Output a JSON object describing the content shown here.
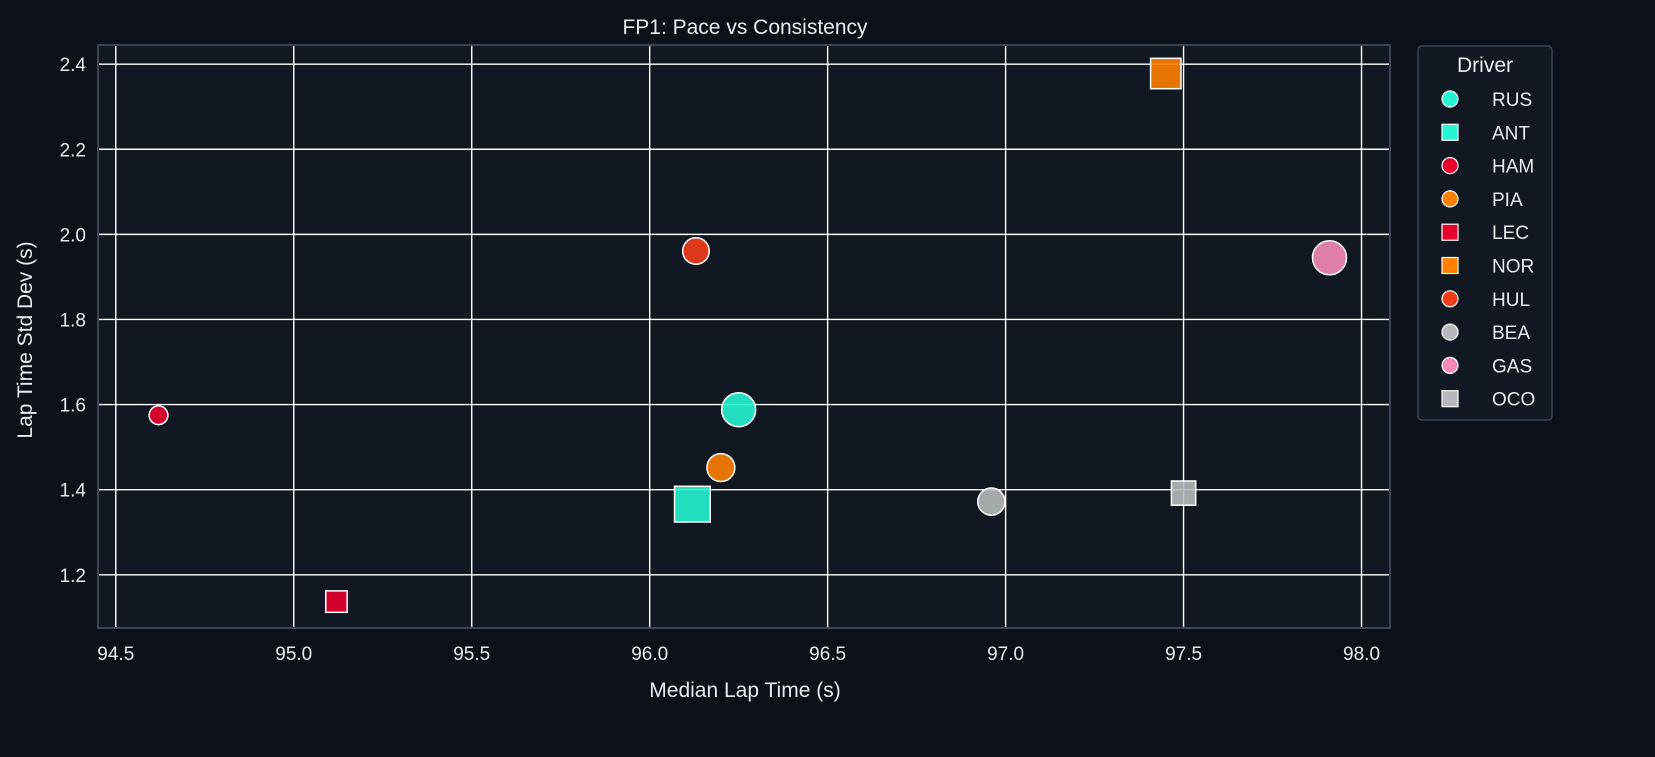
{
  "chart_data": {
    "type": "scatter",
    "title": "FP1: Pace vs Consistency",
    "xlabel": "Median Lap Time (s)",
    "ylabel": "Lap Time Std Dev (s)",
    "xlim": [
      94.45,
      98.08
    ],
    "ylim": [
      1.075,
      2.445
    ],
    "xticks": [
      94.5,
      95.0,
      95.5,
      96.0,
      96.5,
      97.0,
      97.5,
      98.0
    ],
    "xtick_labels": [
      "94.5",
      "95.0",
      "95.5",
      "96.0",
      "96.5",
      "97.0",
      "97.5",
      "98.0"
    ],
    "yticks": [
      1.2,
      1.4,
      1.6,
      1.8,
      2.0,
      2.2,
      2.4
    ],
    "ytick_labels": [
      "1.2",
      "1.4",
      "1.6",
      "1.8",
      "2.0",
      "2.2",
      "2.4"
    ],
    "grid": true,
    "legend_title": "Driver",
    "legend_position": "outside-right",
    "colors": {
      "page_background": "#0c1018",
      "plot_background": "#121821",
      "grid": "#ffffff",
      "axes_border": "#3a4452",
      "text": "#e8eaee",
      "marker_edge": "#ffffff"
    },
    "series": [
      {
        "name": "RUS",
        "marker": "circle",
        "color": "#27f4d2",
        "x": 96.25,
        "y": 1.588,
        "relative_size": 1.0
      },
      {
        "name": "ANT",
        "marker": "square",
        "color": "#27f4d2",
        "x": 96.12,
        "y": 1.366,
        "relative_size": 1.0
      },
      {
        "name": "HAM",
        "marker": "circle",
        "color": "#e8002d",
        "x": 94.62,
        "y": 1.575,
        "relative_size": 0.55
      },
      {
        "name": "PIA",
        "marker": "circle",
        "color": "#ff8000",
        "x": 96.2,
        "y": 1.452,
        "relative_size": 0.82
      },
      {
        "name": "LEC",
        "marker": "square",
        "color": "#e8002d",
        "x": 95.12,
        "y": 1.137,
        "relative_size": 0.6
      },
      {
        "name": "NOR",
        "marker": "square",
        "color": "#ff8000",
        "x": 97.45,
        "y": 2.378,
        "relative_size": 0.85
      },
      {
        "name": "HUL",
        "marker": "circle",
        "color": "#f23d1a",
        "x": 96.13,
        "y": 1.961,
        "relative_size": 0.78
      },
      {
        "name": "BEA",
        "marker": "circle",
        "color": "#b6babd",
        "x": 96.96,
        "y": 1.372,
        "relative_size": 0.8
      },
      {
        "name": "GAS",
        "marker": "circle",
        "color": "#f58ab8",
        "x": 97.91,
        "y": 1.945,
        "relative_size": 1.0
      },
      {
        "name": "OCO",
        "marker": "square",
        "color": "#b6babd",
        "x": 97.5,
        "y": 1.392,
        "relative_size": 0.68
      }
    ]
  }
}
